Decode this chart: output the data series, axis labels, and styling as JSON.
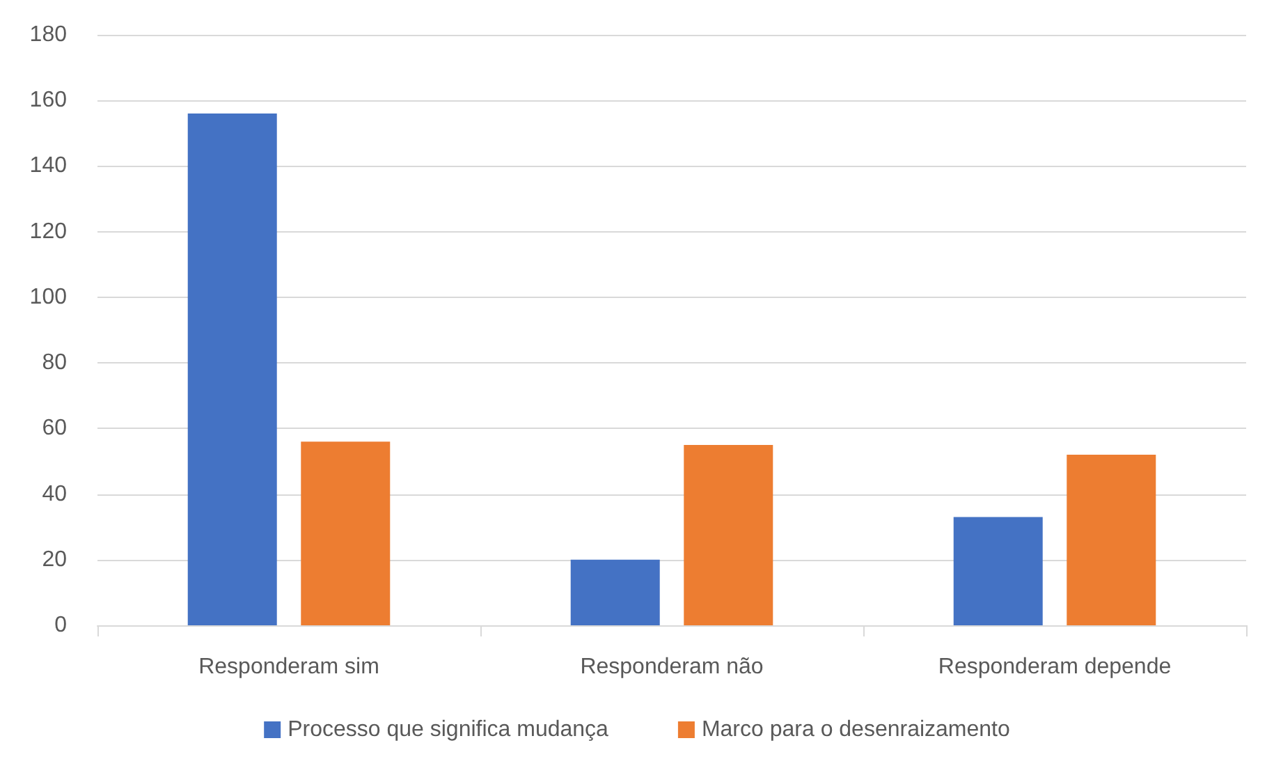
{
  "chart_data": {
    "type": "bar",
    "categories": [
      "Responderam sim",
      "Responderam não",
      "Responderam depende"
    ],
    "series": [
      {
        "name": "Processo que significa mudança",
        "color": "#4472c4",
        "values": [
          156,
          20,
          33
        ]
      },
      {
        "name": "Marco para o desenraizamento",
        "color": "#ed7d31",
        "values": [
          56,
          55,
          52
        ]
      }
    ],
    "ylim": [
      0,
      180
    ],
    "yticks": [
      0,
      20,
      40,
      60,
      80,
      100,
      120,
      140,
      160,
      180
    ],
    "grid": "y",
    "legend": "bottom"
  }
}
